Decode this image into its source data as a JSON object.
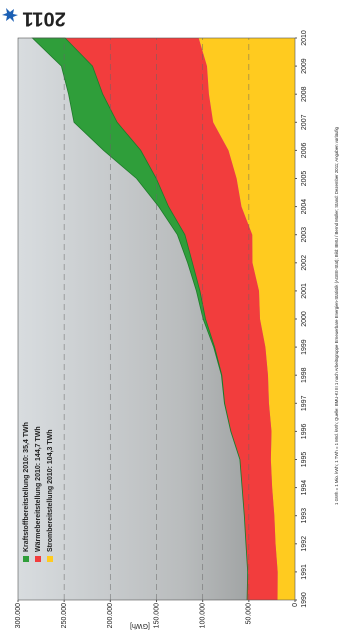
{
  "chart_data": {
    "type": "stacked_area",
    "title": "2011",
    "y_label": "[GWh]",
    "note": "1 GWh = 1 Mio. kWh; 1 TWh = 1 Mrd. kWh; Quelle: BMU-KI III 1 nach Arbeitsgruppe Erneuerbare Energien-Statistik (AGEE-Stat); Bild: BMU / Bernd Müller; Stand: Dezember 2011; Angaben vorläufig",
    "x": [
      1990,
      1991,
      1992,
      1993,
      1994,
      1995,
      1996,
      1997,
      1998,
      1999,
      2000,
      2001,
      2002,
      2003,
      2004,
      2005,
      2006,
      2007,
      2008,
      2009,
      2010
    ],
    "xlim": [
      1990,
      2010
    ],
    "ylim": [
      0,
      300000
    ],
    "yticks": [
      0,
      {
        "value": 50000,
        "label": "50.000"
      },
      {
        "value": 100000,
        "label": "100.000"
      },
      {
        "value": 150000,
        "label": "150.000"
      },
      {
        "value": 200000,
        "label": "200.000"
      },
      {
        "value": 250000,
        "label": "250.000"
      },
      {
        "value": 300000,
        "label": "300.000"
      }
    ],
    "grid": true,
    "legend": "upper left",
    "series": [
      {
        "name": "Kraftstoffbereitstellung 2010: 35,4 TWh",
        "color": "#2f9e3a",
        "values": [
          0,
          0,
          50,
          50,
          50,
          50,
          100,
          200,
          400,
          1000,
          2600,
          3800,
          5200,
          8100,
          10600,
          21400,
          40200,
          46700,
          37000,
          33700,
          35400
        ]
      },
      {
        "name": "Wärmebereitstellung 2010: 144,7 TWh",
        "color": "#f23d3d",
        "values": [
          33000,
          32500,
          32000,
          32500,
          32500,
          33500,
          44000,
          48000,
          50000,
          55000,
          59000,
          64000,
          65000,
          73000,
          79000,
          87000,
          95000,
          104000,
          115000,
          124000,
          144700
        ]
      },
      {
        "name": "Strombereitstellung 2010: 104,3 TWh",
        "color": "#ffcb1f",
        "values": [
          18934,
          18778,
          21087,
          22370,
          24742,
          26160,
          25460,
          28230,
          29260,
          32070,
          37910,
          38990,
          46090,
          46290,
          57980,
          63240,
          72040,
          88630,
          93210,
          95320,
          104300
        ]
      }
    ]
  }
}
